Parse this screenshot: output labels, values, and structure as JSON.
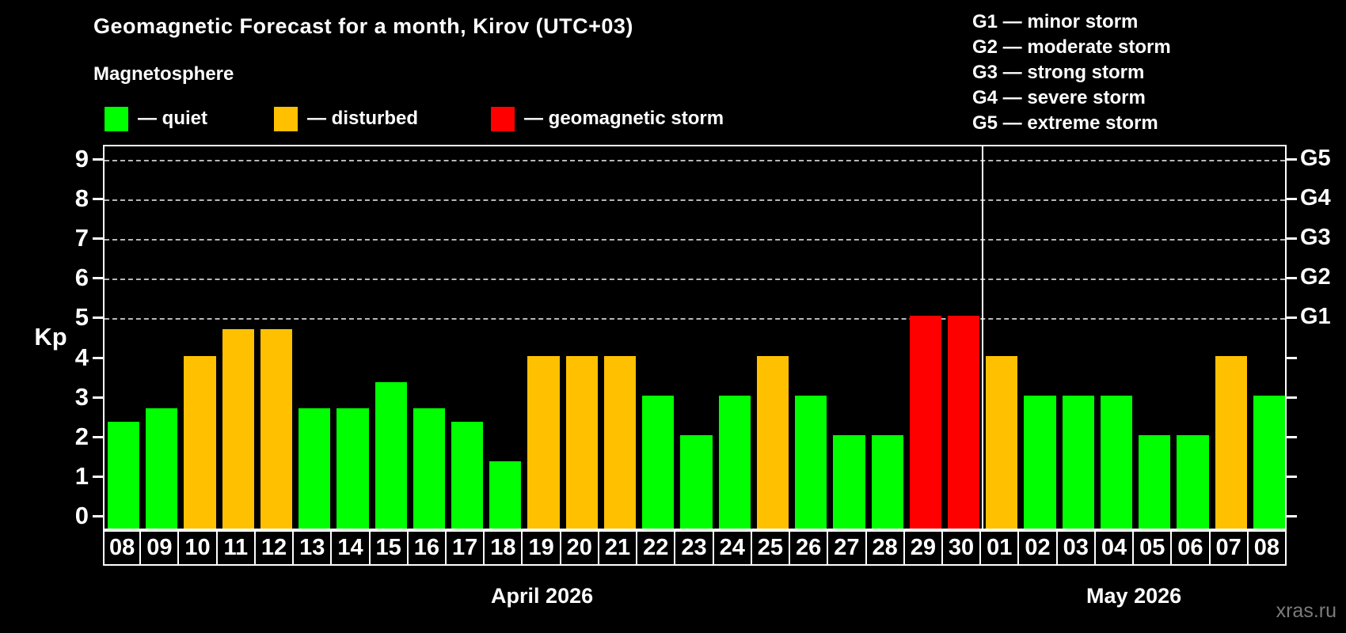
{
  "header": {
    "title": "Geomagnetic Forecast for a month, Kirov (UTC+03)",
    "subtitle": "Magnetosphere"
  },
  "legend": {
    "items": [
      {
        "name": "quiet",
        "label": "— quiet",
        "color": "#00ff00"
      },
      {
        "name": "disturbed",
        "label": "— disturbed",
        "color": "#ffc000"
      },
      {
        "name": "storm",
        "label": "— geomagnetic storm",
        "color": "#ff0000"
      }
    ]
  },
  "g_legend": [
    "G1 — minor storm",
    "G2 — moderate storm",
    "G3 — strong storm",
    "G4 — severe storm",
    "G5 — extreme storm"
  ],
  "axis": {
    "ylabel": "Kp",
    "yticks": [
      0,
      1,
      2,
      3,
      4,
      5,
      6,
      7,
      8,
      9
    ],
    "right_labels": [
      {
        "label": "G1",
        "kp": 5
      },
      {
        "label": "G2",
        "kp": 6
      },
      {
        "label": "G3",
        "kp": 7
      },
      {
        "label": "G4",
        "kp": 8
      },
      {
        "label": "G5",
        "kp": 9
      }
    ]
  },
  "watermark": "xras.ru",
  "chart_data": {
    "type": "bar",
    "title": "Geomagnetic Forecast for a month, Kirov (UTC+03)",
    "xlabel": "",
    "ylabel": "Kp",
    "ylim": [
      0,
      9.4
    ],
    "grid": "dashed horizontal at Kp 5-9 only",
    "legend_position": "top-left",
    "level_colors": {
      "quiet": "#00ff00",
      "disturbed": "#ffc000",
      "storm": "#ff0000"
    },
    "gridlines_kp": [
      5,
      6,
      7,
      8,
      9
    ],
    "months": [
      {
        "label": "April 2026",
        "days": [
          {
            "day": "08",
            "kp": 2.33,
            "level": "quiet"
          },
          {
            "day": "09",
            "kp": 2.67,
            "level": "quiet"
          },
          {
            "day": "10",
            "kp": 4.0,
            "level": "disturbed"
          },
          {
            "day": "11",
            "kp": 4.67,
            "level": "disturbed"
          },
          {
            "day": "12",
            "kp": 4.67,
            "level": "disturbed"
          },
          {
            "day": "13",
            "kp": 2.67,
            "level": "quiet"
          },
          {
            "day": "14",
            "kp": 2.67,
            "level": "quiet"
          },
          {
            "day": "15",
            "kp": 3.33,
            "level": "quiet"
          },
          {
            "day": "16",
            "kp": 2.67,
            "level": "quiet"
          },
          {
            "day": "17",
            "kp": 2.33,
            "level": "quiet"
          },
          {
            "day": "18",
            "kp": 1.33,
            "level": "quiet"
          },
          {
            "day": "19",
            "kp": 4.0,
            "level": "disturbed"
          },
          {
            "day": "20",
            "kp": 4.0,
            "level": "disturbed"
          },
          {
            "day": "21",
            "kp": 4.0,
            "level": "disturbed"
          },
          {
            "day": "22",
            "kp": 3.0,
            "level": "quiet"
          },
          {
            "day": "23",
            "kp": 2.0,
            "level": "quiet"
          },
          {
            "day": "24",
            "kp": 3.0,
            "level": "quiet"
          },
          {
            "day": "25",
            "kp": 4.0,
            "level": "disturbed"
          },
          {
            "day": "26",
            "kp": 3.0,
            "level": "quiet"
          },
          {
            "day": "27",
            "kp": 2.0,
            "level": "quiet"
          },
          {
            "day": "28",
            "kp": 2.0,
            "level": "quiet"
          },
          {
            "day": "29",
            "kp": 5.0,
            "level": "storm"
          },
          {
            "day": "30",
            "kp": 5.0,
            "level": "storm"
          }
        ]
      },
      {
        "label": "May 2026",
        "days": [
          {
            "day": "01",
            "kp": 4.0,
            "level": "disturbed"
          },
          {
            "day": "02",
            "kp": 3.0,
            "level": "quiet"
          },
          {
            "day": "03",
            "kp": 3.0,
            "level": "quiet"
          },
          {
            "day": "04",
            "kp": 3.0,
            "level": "quiet"
          },
          {
            "day": "05",
            "kp": 2.0,
            "level": "quiet"
          },
          {
            "day": "06",
            "kp": 2.0,
            "level": "quiet"
          },
          {
            "day": "07",
            "kp": 4.0,
            "level": "disturbed"
          },
          {
            "day": "08",
            "kp": 3.0,
            "level": "quiet"
          }
        ]
      }
    ]
  }
}
